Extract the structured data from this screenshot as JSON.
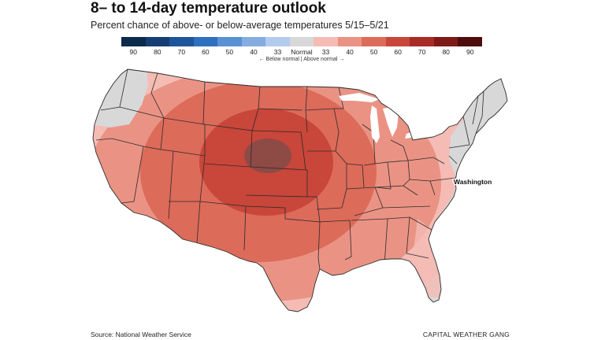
{
  "title": "8– to 14-day temperature outlook",
  "subtitle": "Percent chance of above- or below-average temperatures 5/15–5/21",
  "legend": {
    "swatches": [
      {
        "label": "90",
        "color": "#0c2a4b"
      },
      {
        "label": "80",
        "color": "#153f73"
      },
      {
        "label": "70",
        "color": "#1d559b"
      },
      {
        "label": "60",
        "color": "#2f6fbf"
      },
      {
        "label": "50",
        "color": "#5a90d4"
      },
      {
        "label": "40",
        "color": "#85ace0"
      },
      {
        "label": "33",
        "color": "#b3cbee"
      },
      {
        "label": "Normal",
        "color": "#d8d8d8"
      },
      {
        "label": "33",
        "color": "#f4bcb4"
      },
      {
        "label": "40",
        "color": "#ea9384"
      },
      {
        "label": "50",
        "color": "#dc6b5a"
      },
      {
        "label": "60",
        "color": "#c8463a"
      },
      {
        "label": "70",
        "color": "#a72b26"
      },
      {
        "label": "80",
        "color": "#7f1a18"
      },
      {
        "label": "90",
        "color": "#4d0d0c"
      }
    ],
    "note": "← Below normal | Above normal →"
  },
  "map": {
    "city_label": "Washington",
    "colors": {
      "normal": "#d8d8d8",
      "p33": "#f4bcb4",
      "p40": "#ea9384",
      "p50": "#dc6b5a",
      "p60": "#c8463a",
      "p70": "#8e4a45",
      "border": "#2b2b2b"
    }
  },
  "source": "Source: National Weather Service",
  "credit": "CAPITAL WEATHER GANG"
}
